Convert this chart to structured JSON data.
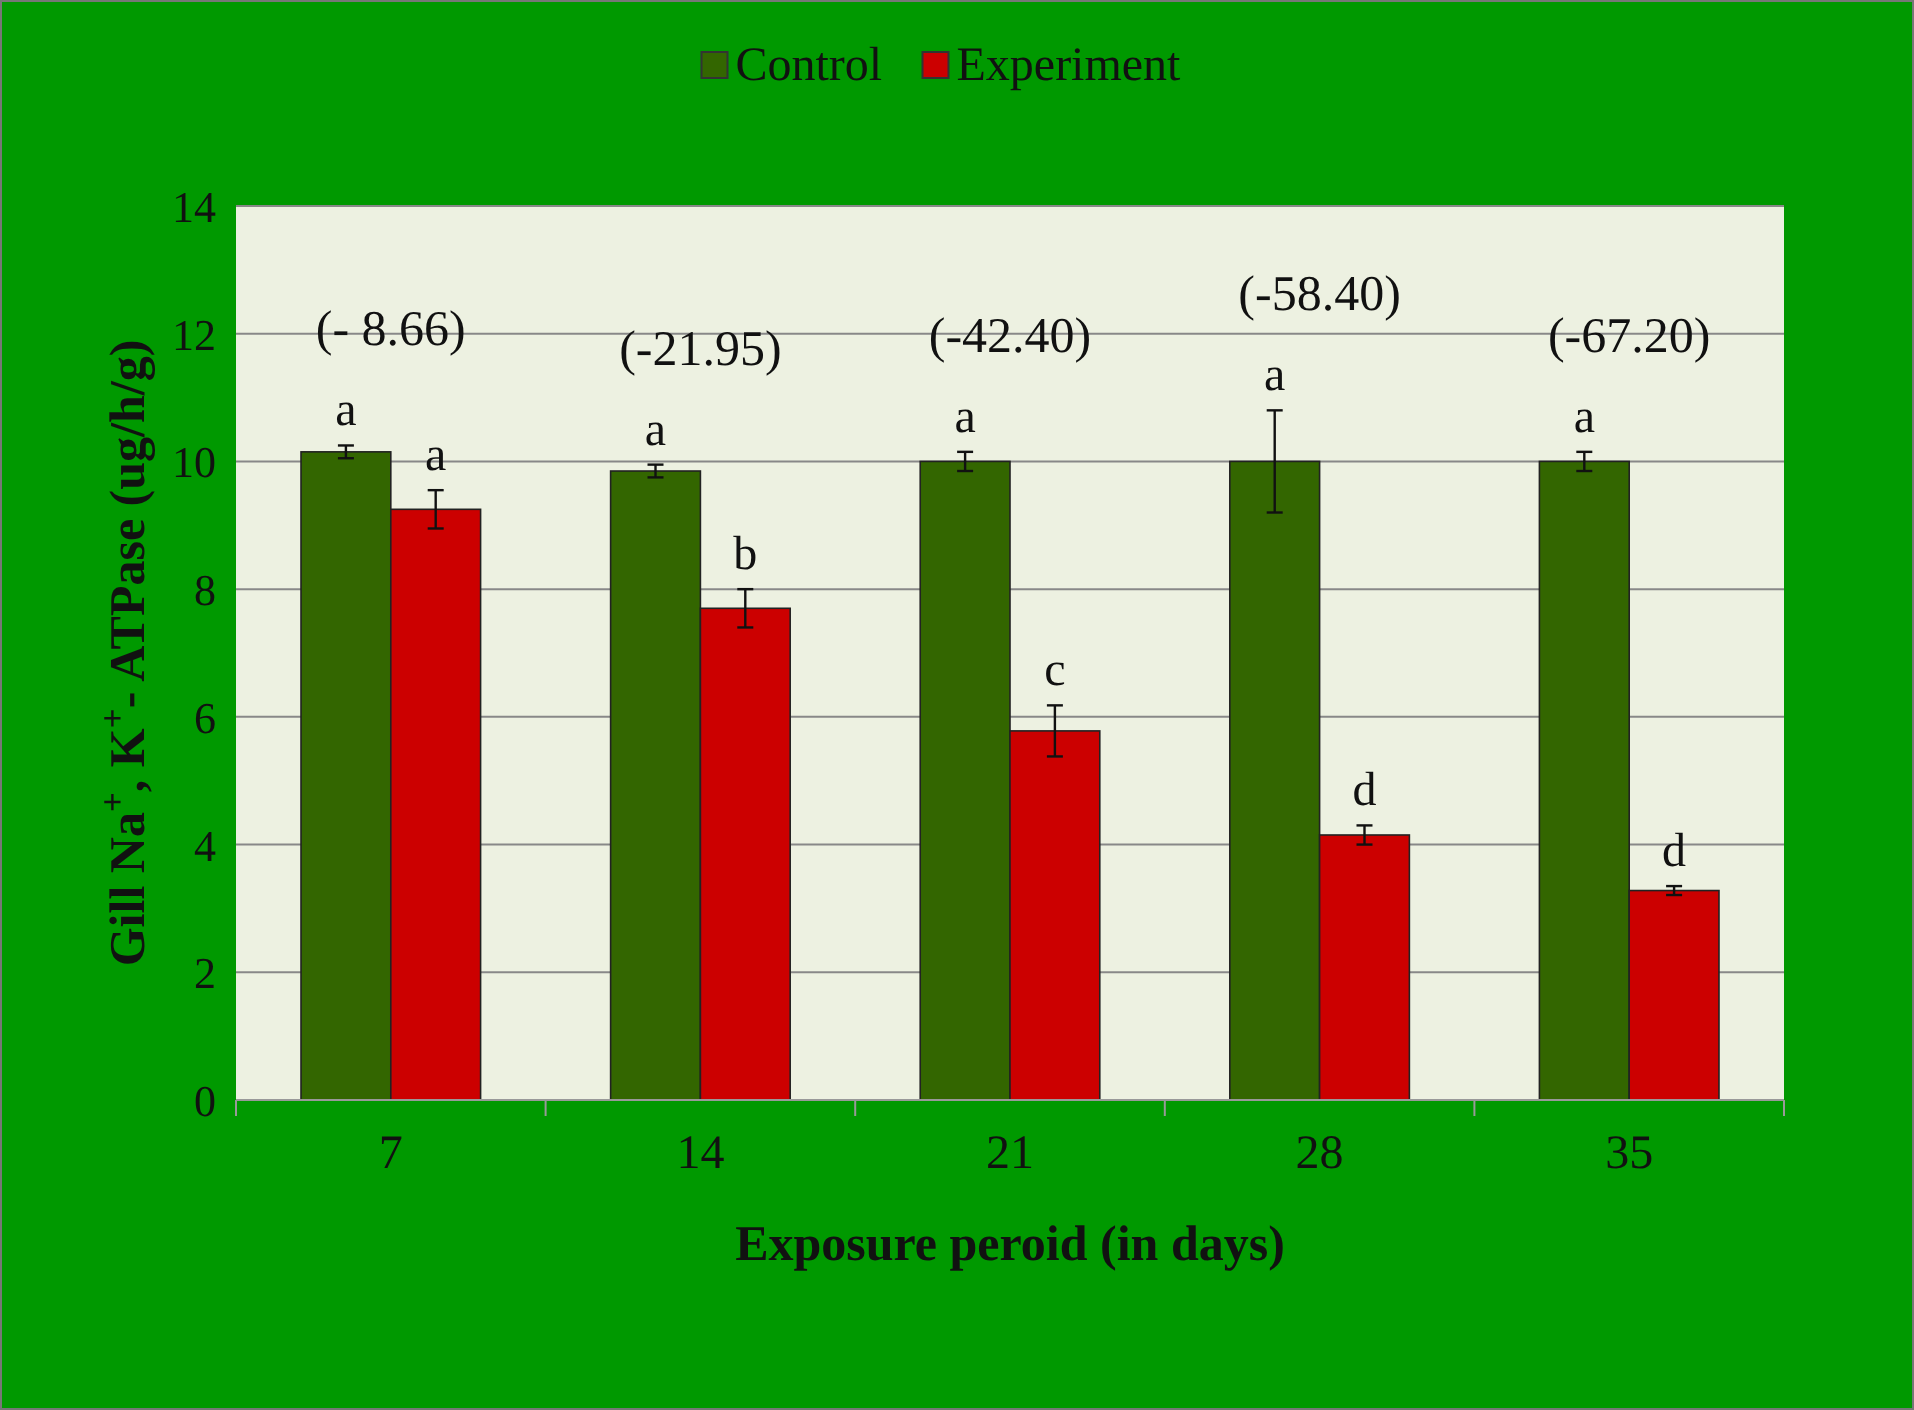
{
  "chart_data": {
    "type": "bar",
    "xlabel": "Exposure peroid (in days)",
    "ylabel": "Gill Na$^{+}$, K$^{+}$- ATPase (ug/h/g)",
    "categories": [
      "7",
      "14",
      "21",
      "28",
      "35"
    ],
    "series": [
      {
        "name": "Control",
        "color": "#336600",
        "values": [
          10.15,
          9.85,
          10.0,
          10.0,
          10.0
        ],
        "errors": [
          0.1,
          0.1,
          0.15,
          0.8,
          0.15
        ],
        "value_labels": [
          "a",
          "a",
          "a",
          "a",
          "a"
        ]
      },
      {
        "name": "Experiment",
        "color": "#cc0000",
        "values": [
          9.25,
          7.7,
          5.78,
          4.15,
          3.28
        ],
        "errors": [
          0.3,
          0.3,
          0.4,
          0.15,
          0.07
        ],
        "value_labels": [
          "a",
          "b",
          "c",
          "d",
          "d"
        ]
      }
    ],
    "annotations": [
      "(- 8.66)",
      "(-21.95)",
      "(-42.40)",
      "(-58.40)",
      "(-67.20)"
    ],
    "ylim": [
      0,
      14
    ],
    "yticks": [
      0,
      2,
      4,
      6,
      8,
      10,
      12,
      14
    ],
    "grid": "y",
    "legend": "top"
  }
}
